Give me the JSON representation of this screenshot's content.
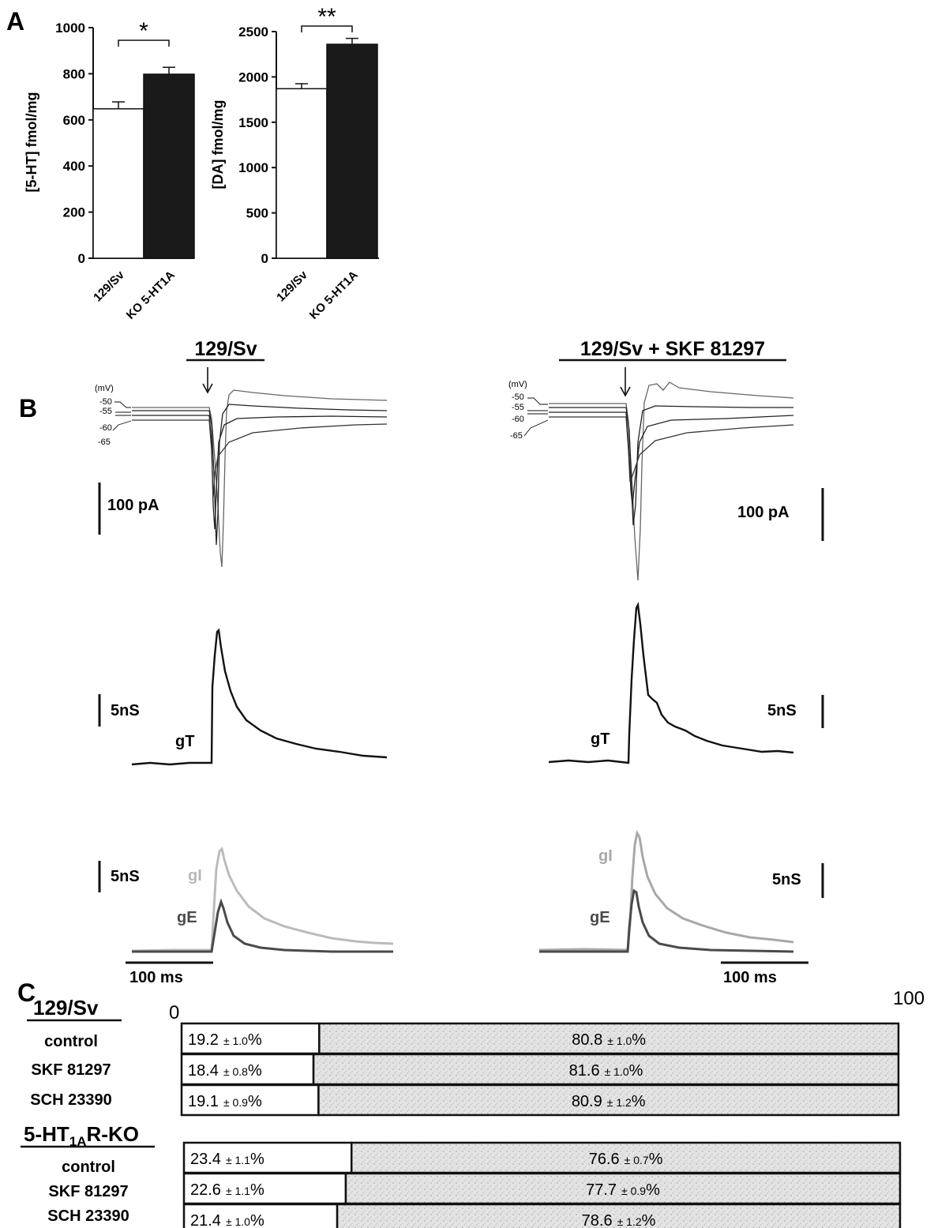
{
  "chart_data": [
    {
      "panel": "A",
      "type": "bar",
      "ylabel": "[5-HT] fmol/mg",
      "categories": [
        "129/Sv",
        "KO 5-HT1A"
      ],
      "values": [
        648,
        798
      ],
      "errors": [
        30,
        30
      ],
      "bar_colors": [
        "#ffffff",
        "#1a1a1a"
      ],
      "ylim": [
        0,
        1000
      ],
      "yticks": [
        "0",
        "200",
        "400",
        "600",
        "800",
        "1000"
      ],
      "significance": "*"
    },
    {
      "panel": "A",
      "type": "bar",
      "ylabel": "[DA] fmol/mg",
      "categories": [
        "129/Sv",
        "KO 5-HT1A"
      ],
      "values": [
        1870,
        2360
      ],
      "errors": [
        55,
        65
      ],
      "bar_colors": [
        "#ffffff",
        "#1a1a1a"
      ],
      "ylim": [
        0,
        2500
      ],
      "yticks": [
        "0",
        "500",
        "1000",
        "1500",
        "2000",
        "2500"
      ],
      "significance": "**"
    },
    {
      "panel": "B",
      "type": "line",
      "title": "129/Sv",
      "voltage_unit": "(mV)",
      "holding_potentials": [
        "-50",
        "-55",
        "-60",
        "-65"
      ],
      "current_scale": "100 pA",
      "conductance_scale": "5nS",
      "total_trace_label": "gT",
      "inhibitory_trace_label": "gI",
      "excitatory_trace_label": "gE",
      "time_scale": "100 ms"
    },
    {
      "panel": "B",
      "type": "line",
      "title": "129/Sv + SKF 81297",
      "voltage_unit": "(mV)",
      "holding_potentials": [
        "-50",
        "-55",
        "-60",
        "-65"
      ],
      "current_scale": "100 pA",
      "conductance_scale": "5nS",
      "total_trace_label": "gT",
      "inhibitory_trace_label": "gI",
      "excitatory_trace_label": "gE",
      "time_scale": "100 ms"
    },
    {
      "panel": "C",
      "type": "bar",
      "orientation": "horizontal-stacked",
      "axis_start": "0",
      "axis_end": "100",
      "groups": [
        {
          "name": "129/Sv",
          "rows": [
            {
              "condition": "control",
              "gE": 19.2,
              "gE_sem": "± 1.0",
              "gI": 80.8,
              "gI_sem": "± 1.0"
            },
            {
              "condition": "SKF 81297",
              "gE": 18.4,
              "gE_sem": "± 0.8",
              "gI": 81.6,
              "gI_sem": "± 1.0"
            },
            {
              "condition": "SCH 23390",
              "gE": 19.1,
              "gE_sem": "± 0.9",
              "gI": 80.9,
              "gI_sem": "± 1.2"
            }
          ]
        },
        {
          "name_main": "5-HT",
          "name_sub": "1A",
          "name_tail": "R-KO",
          "rows": [
            {
              "condition": "control",
              "gE": 23.4,
              "gE_sem": "± 1.1",
              "gI": 76.6,
              "gI_sem": "± 0.7"
            },
            {
              "condition": "SKF 81297",
              "gE": 22.6,
              "gE_sem": "± 1.1",
              "gI": 77.7,
              "gI_sem": "± 0.9"
            },
            {
              "condition": "SCH 23390",
              "gE": 21.4,
              "gE_sem": "± 1.0",
              "gI": 78.6,
              "gI_sem": "± 1.2"
            }
          ]
        }
      ]
    }
  ],
  "panel_labels": {
    "a": "A",
    "b": "B",
    "c": "C"
  },
  "colors": {
    "ink": "#111111",
    "ko_bar": "#1a1a1a",
    "gI": "#b8b8b8",
    "gE": "#4a4a4a",
    "stipple": "#e2e2e2"
  }
}
